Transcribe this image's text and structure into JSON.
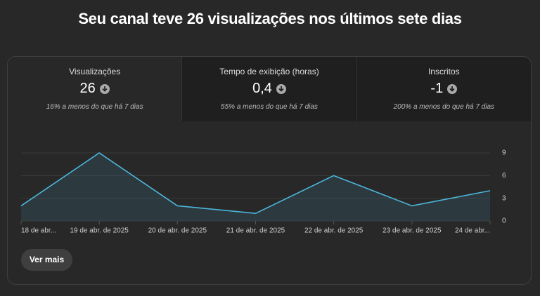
{
  "header": {
    "title": "Seu canal teve 26 visualizações nos últimos sete dias"
  },
  "metrics": [
    {
      "label": "Visualizações",
      "value": "26",
      "change": "16% a menos do que há 7 dias"
    },
    {
      "label": "Tempo de exibição (horas)",
      "value": "0,4",
      "change": "55% a menos do que há 7 dias"
    },
    {
      "label": "Inscritos",
      "value": "-1",
      "change": "200% a menos do que há 7 dias"
    }
  ],
  "chart_data": {
    "type": "area",
    "categories": [
      "18 de abr...",
      "19 de abr. de 2025",
      "20 de abr. de 2025",
      "21 de abr. de 2025",
      "22 de abr. de 2025",
      "23 de abr. de 2025",
      "24 de abr..."
    ],
    "values": [
      2,
      9,
      2,
      1,
      6,
      2,
      4
    ],
    "color": "#4cb6dc",
    "ylim": [
      0,
      9
    ],
    "yticks": [
      0,
      3,
      6,
      9
    ],
    "grid": true
  },
  "button": "Ver mais"
}
